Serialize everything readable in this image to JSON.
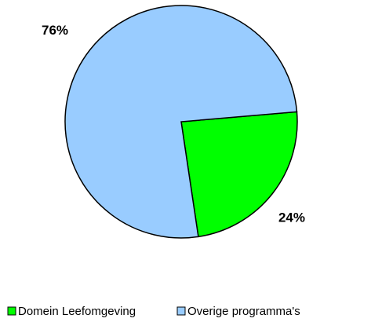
{
  "chart_data": {
    "type": "pie",
    "categories": [
      "Domein Leefomgeving",
      "Overige programma's"
    ],
    "values": [
      24,
      76
    ],
    "value_labels": [
      "24%",
      "76%"
    ],
    "colors": [
      "#00ff00",
      "#99ccff"
    ],
    "legend": "bottom"
  }
}
